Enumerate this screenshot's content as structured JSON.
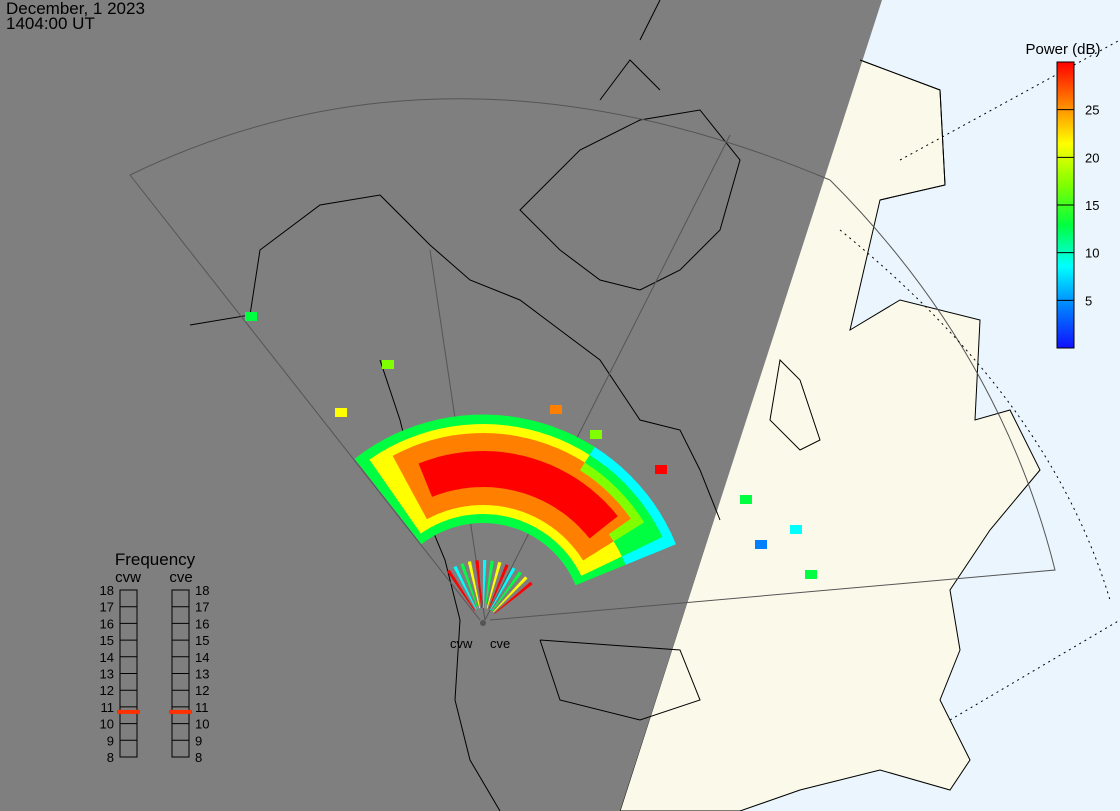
{
  "header": {
    "date": "December, 1 2023",
    "time": "1404:00 UT"
  },
  "colorbar": {
    "title": "Power (dB)",
    "ticks": [
      "25",
      "20",
      "15",
      "10",
      "5"
    ],
    "range": [
      0,
      30
    ],
    "colors": [
      "#1010ff",
      "#0080ff",
      "#00ffff",
      "#00ff40",
      "#80ff00",
      "#ffff00",
      "#ff8000",
      "#ff0000"
    ]
  },
  "frequency": {
    "title": "Frequency",
    "unit_range": [
      8,
      18
    ],
    "radars": [
      {
        "name": "cvw",
        "value": 10.7
      },
      {
        "name": "cve",
        "value": 10.7
      }
    ],
    "ticks": [
      "18",
      "17",
      "16",
      "15",
      "14",
      "13",
      "12",
      "11",
      "10",
      "9",
      "8"
    ],
    "marker_color": "#ff3000"
  },
  "map": {
    "night_color": "#7f7f7f",
    "land_color": "#fbfaea",
    "ocean_color": "#eaf5fd",
    "radar_labels": [
      "cvw",
      "cve"
    ]
  }
}
